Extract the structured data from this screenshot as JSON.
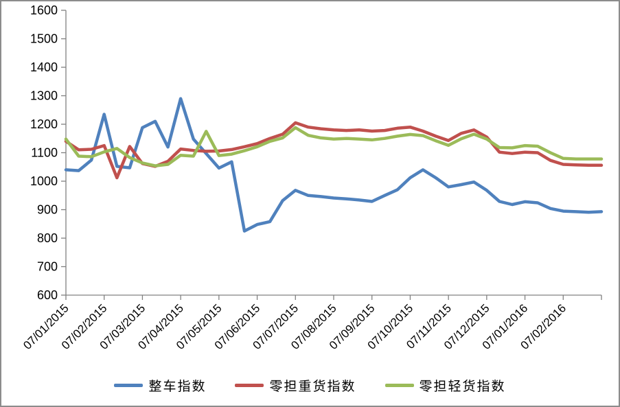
{
  "chart_data": {
    "type": "line",
    "title": "",
    "grid": false,
    "legend_position": "bottom",
    "axis_color": "#808080",
    "background_color": "#ffffff",
    "frame_border_color": "#8c8c8c",
    "y_axis": {
      "min": 600,
      "max": 1600,
      "step": 100,
      "tick_labels": [
        "600",
        "700",
        "800",
        "900",
        "1000",
        "1100",
        "1200",
        "1300",
        "1400",
        "1500",
        "1600"
      ]
    },
    "x_axis": {
      "tick_labels": [
        "07/01/2015",
        "07/02/2015",
        "07/03/2015",
        "07/04/2015",
        "07/05/2015",
        "07/06/2015",
        "07/07/2015",
        "07/08/2015",
        "07/09/2015",
        "07/10/2015",
        "07/11/2015",
        "07/12/2015",
        "07/01/2016",
        "07/02/2016"
      ],
      "points_per_tick_interval": 3
    },
    "series": [
      {
        "name": "整车指数",
        "color": "#4F81BD",
        "values": [
          1040,
          1037,
          1074,
          1235,
          1052,
          1047,
          1188,
          1210,
          1120,
          1290,
          1148,
          1097,
          1046,
          1068,
          825,
          848,
          858,
          932,
          968,
          950,
          946,
          941,
          938,
          934,
          929,
          950,
          970,
          1012,
          1040,
          1012,
          980,
          988,
          997,
          968,
          929,
          918,
          928,
          924,
          904,
          895,
          893,
          891,
          893
        ]
      },
      {
        "name": "零担重货指数",
        "color": "#C0504D",
        "values": [
          1140,
          1110,
          1112,
          1125,
          1012,
          1122,
          1062,
          1052,
          1070,
          1113,
          1108,
          1105,
          1106,
          1111,
          1121,
          1132,
          1150,
          1165,
          1205,
          1190,
          1184,
          1180,
          1178,
          1180,
          1176,
          1178,
          1186,
          1190,
          1176,
          1158,
          1143,
          1168,
          1180,
          1155,
          1102,
          1097,
          1102,
          1100,
          1073,
          1059,
          1057,
          1056,
          1056
        ]
      },
      {
        "name": "零担轻货指数",
        "color": "#9BBB59",
        "values": [
          1148,
          1088,
          1086,
          1103,
          1115,
          1083,
          1064,
          1054,
          1059,
          1091,
          1088,
          1175,
          1090,
          1095,
          1107,
          1121,
          1140,
          1152,
          1188,
          1161,
          1152,
          1148,
          1150,
          1148,
          1145,
          1150,
          1158,
          1164,
          1160,
          1142,
          1126,
          1149,
          1165,
          1148,
          1118,
          1117,
          1125,
          1123,
          1100,
          1080,
          1078,
          1078,
          1078
        ]
      }
    ]
  }
}
